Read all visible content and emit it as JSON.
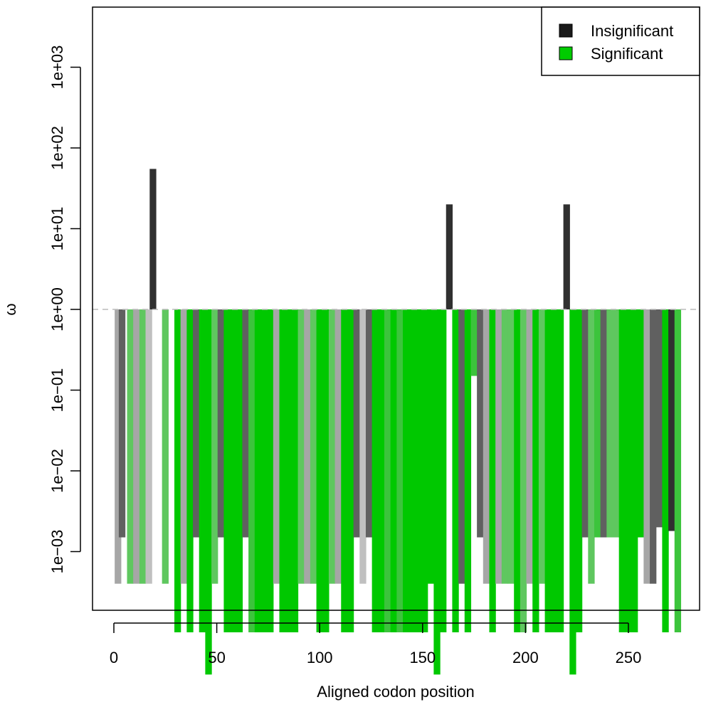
{
  "chart_data": {
    "type": "bar",
    "title": "",
    "xlabel": "Aligned codon position",
    "ylabel": "ω",
    "x_ticks": [
      "0",
      "50",
      "100",
      "150",
      "200",
      "250"
    ],
    "y_ticks": [
      "1e−03",
      "1e−02",
      "1e−01",
      "1e+00",
      "1e+01",
      "1e+02",
      "1e+03"
    ],
    "y_scale": "log10",
    "reference_line": 1,
    "legend": {
      "position": "top-right",
      "entries": [
        {
          "label": "Insignificant",
          "color": "#1a1a1a"
        },
        {
          "label": "Significant",
          "color": "#00cc00"
        }
      ]
    },
    "colors": {
      "dark": "#303030",
      "mid_gray": "#606060",
      "light_gray": "#a6a6a6",
      "pale_gray": "#c0c0c0",
      "green": "#00c800",
      "mid_green": "#3cc43c",
      "light_green": "#5fc75f",
      "reference": "#bbbbbb"
    },
    "series": [
      {
        "x": 2,
        "value": 0.0004,
        "color": "light_gray"
      },
      {
        "x": 4,
        "value": 0.0015,
        "color": "mid_gray"
      },
      {
        "x": 8,
        "value": 0.0004,
        "color": "light_green"
      },
      {
        "x": 11,
        "value": 0.0004,
        "color": "light_gray"
      },
      {
        "x": 14,
        "value": 0.0004,
        "color": "light_green"
      },
      {
        "x": 17,
        "value": 0.0004,
        "color": "pale_gray"
      },
      {
        "x": 19,
        "value": 55,
        "color": "dark"
      },
      {
        "x": 25,
        "value": 0.0004,
        "color": "light_green"
      },
      {
        "x": 31,
        "value": 0.0001,
        "color": "green"
      },
      {
        "x": 34,
        "value": 0.0004,
        "color": "light_gray"
      },
      {
        "x": 37,
        "value": 0.0001,
        "color": "green"
      },
      {
        "x": 40,
        "value": 0.0015,
        "color": "mid_gray"
      },
      {
        "x": 43,
        "value": 0.0001,
        "color": "green"
      },
      {
        "x": 46,
        "value": 3e-05,
        "color": "green"
      },
      {
        "x": 49,
        "value": 0.0004,
        "color": "light_green"
      },
      {
        "x": 52,
        "value": 0.0015,
        "color": "mid_gray"
      },
      {
        "x": 55,
        "value": 0.0001,
        "color": "green"
      },
      {
        "x": 58,
        "value": 0.0001,
        "color": "green"
      },
      {
        "x": 61,
        "value": 0.0001,
        "color": "green"
      },
      {
        "x": 64,
        "value": 0.0015,
        "color": "mid_gray"
      },
      {
        "x": 67,
        "value": 0.0001,
        "color": "mid_green"
      },
      {
        "x": 70,
        "value": 0.0001,
        "color": "green"
      },
      {
        "x": 73,
        "value": 0.0001,
        "color": "green"
      },
      {
        "x": 76,
        "value": 0.0001,
        "color": "green"
      },
      {
        "x": 79,
        "value": 0.0004,
        "color": "light_gray"
      },
      {
        "x": 82,
        "value": 0.0001,
        "color": "green"
      },
      {
        "x": 85,
        "value": 0.0001,
        "color": "green"
      },
      {
        "x": 88,
        "value": 0.0001,
        "color": "green"
      },
      {
        "x": 91,
        "value": 0.0004,
        "color": "light_green"
      },
      {
        "x": 94,
        "value": 0.0004,
        "color": "light_gray"
      },
      {
        "x": 97,
        "value": 0.0004,
        "color": "light_green"
      },
      {
        "x": 100,
        "value": 0.0001,
        "color": "green"
      },
      {
        "x": 103,
        "value": 0.0001,
        "color": "green"
      },
      {
        "x": 106,
        "value": 0.0004,
        "color": "light_green"
      },
      {
        "x": 109,
        "value": 0.0004,
        "color": "light_gray"
      },
      {
        "x": 112,
        "value": 0.0001,
        "color": "green"
      },
      {
        "x": 115,
        "value": 0.0001,
        "color": "green"
      },
      {
        "x": 118,
        "value": 0.0015,
        "color": "mid_gray"
      },
      {
        "x": 121,
        "value": 0.0004,
        "color": "pale_gray"
      },
      {
        "x": 124,
        "value": 0.0015,
        "color": "mid_gray"
      },
      {
        "x": 127,
        "value": 0.0001,
        "color": "green"
      },
      {
        "x": 130,
        "value": 0.0001,
        "color": "green"
      },
      {
        "x": 133,
        "value": 0.0001,
        "color": "mid_green"
      },
      {
        "x": 136,
        "value": 0.0001,
        "color": "green"
      },
      {
        "x": 139,
        "value": 0.0001,
        "color": "mid_green"
      },
      {
        "x": 142,
        "value": 0.0001,
        "color": "green"
      },
      {
        "x": 145,
        "value": 0.0001,
        "color": "green"
      },
      {
        "x": 148,
        "value": 0.0001,
        "color": "green"
      },
      {
        "x": 151,
        "value": 0.0001,
        "color": "green"
      },
      {
        "x": 154,
        "value": 0.0004,
        "color": "green"
      },
      {
        "x": 157,
        "value": 3e-05,
        "color": "green"
      },
      {
        "x": 160,
        "value": 0.0001,
        "color": "green"
      },
      {
        "x": 163,
        "value": 20,
        "color": "dark"
      },
      {
        "x": 166,
        "value": 0.0001,
        "color": "green"
      },
      {
        "x": 169,
        "value": 0.0004,
        "color": "mid_gray"
      },
      {
        "x": 172,
        "value": 0.0001,
        "color": "green"
      },
      {
        "x": 175,
        "value": 0.15,
        "color": "mid_green"
      },
      {
        "x": 178,
        "value": 0.0015,
        "color": "mid_gray"
      },
      {
        "x": 181,
        "value": 0.0004,
        "color": "light_gray"
      },
      {
        "x": 184,
        "value": 0.0001,
        "color": "green"
      },
      {
        "x": 187,
        "value": 0.0004,
        "color": "light_gray"
      },
      {
        "x": 190,
        "value": 0.0004,
        "color": "light_green"
      },
      {
        "x": 193,
        "value": 0.0004,
        "color": "light_green"
      },
      {
        "x": 196,
        "value": 0.0001,
        "color": "green"
      },
      {
        "x": 199,
        "value": 0.0001,
        "color": "light_green"
      },
      {
        "x": 202,
        "value": 0.0004,
        "color": "light_gray"
      },
      {
        "x": 205,
        "value": 0.0001,
        "color": "green"
      },
      {
        "x": 208,
        "value": 0.0004,
        "color": "light_green"
      },
      {
        "x": 211,
        "value": 0.0001,
        "color": "green"
      },
      {
        "x": 214,
        "value": 0.0001,
        "color": "green"
      },
      {
        "x": 217,
        "value": 0.0001,
        "color": "green"
      },
      {
        "x": 220,
        "value": 20,
        "color": "dark"
      },
      {
        "x": 223,
        "value": 3e-05,
        "color": "green"
      },
      {
        "x": 226,
        "value": 0.0001,
        "color": "green"
      },
      {
        "x": 229,
        "value": 0.0015,
        "color": "mid_gray"
      },
      {
        "x": 232,
        "value": 0.0004,
        "color": "light_green"
      },
      {
        "x": 235,
        "value": 0.0015,
        "color": "mid_green"
      },
      {
        "x": 238,
        "value": 0.0015,
        "color": "mid_gray"
      },
      {
        "x": 241,
        "value": 0.0015,
        "color": "light_green"
      },
      {
        "x": 244,
        "value": 0.0015,
        "color": "light_green"
      },
      {
        "x": 247,
        "value": 0.0001,
        "color": "green"
      },
      {
        "x": 250,
        "value": 0.0001,
        "color": "green"
      },
      {
        "x": 253,
        "value": 0.0001,
        "color": "green"
      },
      {
        "x": 256,
        "value": 0.0015,
        "color": "green"
      },
      {
        "x": 259,
        "value": 0.0004,
        "color": "light_gray"
      },
      {
        "x": 262,
        "value": 0.0004,
        "color": "mid_gray"
      },
      {
        "x": 265,
        "value": 0.002,
        "color": "mid_gray"
      },
      {
        "x": 268,
        "value": 0.0001,
        "color": "green"
      },
      {
        "x": 271,
        "value": 0.0018,
        "color": "dark"
      },
      {
        "x": 274,
        "value": 0.0001,
        "color": "mid_green"
      }
    ]
  }
}
